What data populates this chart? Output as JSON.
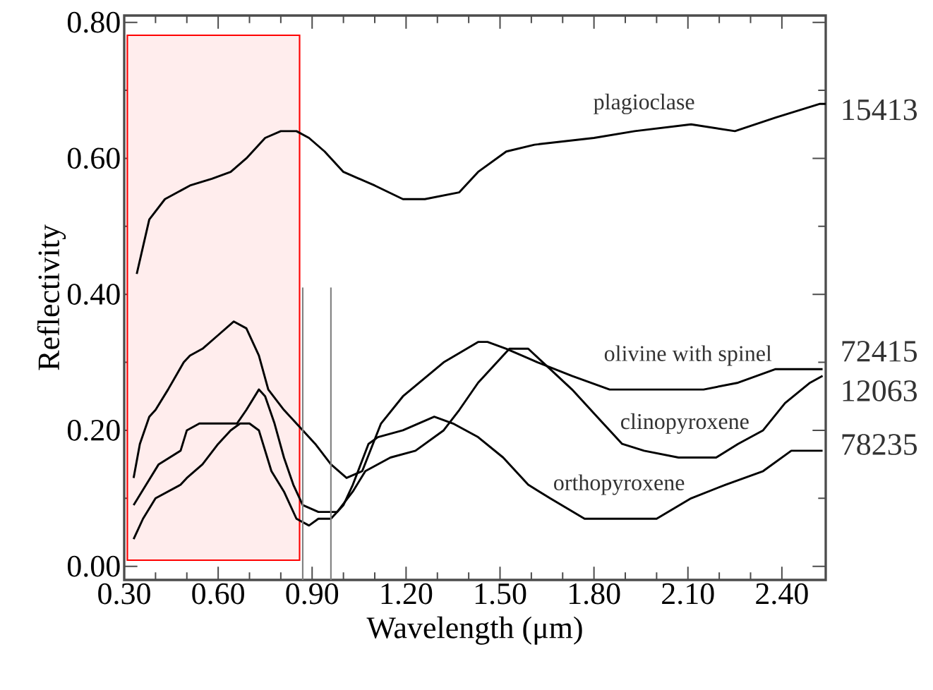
{
  "chart_data": {
    "type": "line",
    "xlabel": "Wavelength (μm)",
    "ylabel": "Reflectivity",
    "marker": "none",
    "line_style": "solid",
    "xlim": [
      0.3,
      2.54
    ],
    "ylim": [
      -0.02,
      0.81
    ],
    "xticks": [
      {
        "value": 0.3,
        "label": "0.30"
      },
      {
        "value": 0.6,
        "label": "0.60"
      },
      {
        "value": 0.9,
        "label": "0.90"
      },
      {
        "value": 1.2,
        "label": "1.20"
      },
      {
        "value": 1.5,
        "label": "1.50"
      },
      {
        "value": 1.8,
        "label": "1.80"
      },
      {
        "value": 2.1,
        "label": "2.10"
      },
      {
        "value": 2.4,
        "label": "2.40"
      }
    ],
    "yticks": [
      {
        "value": 0,
        "label": "0.00"
      },
      {
        "value": 0.2,
        "label": "0.20"
      },
      {
        "value": 0.4,
        "label": "0.40"
      },
      {
        "value": 0.6,
        "label": "0.60"
      },
      {
        "value": 0.8,
        "label": "0.80"
      }
    ],
    "series": [
      {
        "name": "plagioclase",
        "color": "#000000",
        "x": [
          0.34,
          0.36,
          0.38,
          0.43,
          0.51,
          0.58,
          0.64,
          0.69,
          0.75,
          0.8,
          0.85,
          0.89,
          0.94,
          1.0,
          1.1,
          1.19,
          1.26,
          1.37,
          1.43,
          1.52,
          1.61,
          1.8,
          1.93,
          2.11,
          2.25,
          2.38,
          2.52,
          2.54
        ],
        "values": [
          0.43,
          0.47,
          0.51,
          0.54,
          0.56,
          0.57,
          0.58,
          0.6,
          0.63,
          0.64,
          0.64,
          0.63,
          0.61,
          0.58,
          0.56,
          0.54,
          0.54,
          0.55,
          0.58,
          0.61,
          0.62,
          0.63,
          0.64,
          0.65,
          0.64,
          0.66,
          0.68,
          0.68
        ]
      },
      {
        "name": "olivine with spinel",
        "color": "#000000",
        "x": [
          0.33,
          0.35,
          0.38,
          0.4,
          0.44,
          0.49,
          0.51,
          0.55,
          0.6,
          0.65,
          0.69,
          0.73,
          0.76,
          0.81,
          0.85,
          0.91,
          0.96,
          1.01,
          1.06,
          1.12,
          1.19,
          1.32,
          1.43,
          1.46,
          1.52,
          1.62,
          1.73,
          1.85,
          1.96,
          2.15,
          2.26,
          2.38,
          2.53
        ],
        "values": [
          0.13,
          0.18,
          0.22,
          0.23,
          0.26,
          0.3,
          0.31,
          0.32,
          0.34,
          0.36,
          0.35,
          0.31,
          0.26,
          0.23,
          0.21,
          0.18,
          0.15,
          0.13,
          0.14,
          0.21,
          0.25,
          0.3,
          0.33,
          0.33,
          0.32,
          0.3,
          0.28,
          0.26,
          0.26,
          0.26,
          0.27,
          0.29,
          0.29
        ]
      },
      {
        "name": "clinopyroxene",
        "color": "#000000",
        "x": [
          0.33,
          0.37,
          0.41,
          0.48,
          0.5,
          0.54,
          0.62,
          0.66,
          0.69,
          0.73,
          0.75,
          0.78,
          0.81,
          0.84,
          0.87,
          0.92,
          0.98,
          1.03,
          1.07,
          1.15,
          1.23,
          1.32,
          1.37,
          1.43,
          1.53,
          1.59,
          1.66,
          1.73,
          1.81,
          1.89,
          1.96,
          2.07,
          2.19,
          2.26,
          2.34,
          2.41,
          2.49,
          2.53
        ],
        "values": [
          0.09,
          0.12,
          0.15,
          0.17,
          0.2,
          0.21,
          0.21,
          0.21,
          0.23,
          0.26,
          0.25,
          0.21,
          0.16,
          0.12,
          0.09,
          0.08,
          0.08,
          0.11,
          0.14,
          0.16,
          0.17,
          0.2,
          0.23,
          0.27,
          0.32,
          0.32,
          0.29,
          0.26,
          0.22,
          0.18,
          0.17,
          0.16,
          0.16,
          0.18,
          0.2,
          0.24,
          0.27,
          0.28
        ]
      },
      {
        "name": "orthopyroxene",
        "color": "#000000",
        "x": [
          0.33,
          0.36,
          0.4,
          0.48,
          0.5,
          0.55,
          0.6,
          0.64,
          0.67,
          0.7,
          0.73,
          0.77,
          0.81,
          0.85,
          0.89,
          0.92,
          0.96,
          1.0,
          1.03,
          1.08,
          1.11,
          1.19,
          1.29,
          1.35,
          1.43,
          1.51,
          1.59,
          1.66,
          1.77,
          1.89,
          2.0,
          2.11,
          2.22,
          2.34,
          2.43,
          2.53
        ],
        "values": [
          0.04,
          0.07,
          0.1,
          0.12,
          0.13,
          0.15,
          0.18,
          0.2,
          0.21,
          0.21,
          0.2,
          0.14,
          0.11,
          0.07,
          0.06,
          0.07,
          0.07,
          0.09,
          0.12,
          0.18,
          0.19,
          0.2,
          0.22,
          0.21,
          0.19,
          0.16,
          0.12,
          0.1,
          0.07,
          0.07,
          0.07,
          0.1,
          0.12,
          0.14,
          0.17,
          0.17
        ]
      },
      {
        "color": "#808080",
        "x": [
          0.87,
          0.87
        ],
        "values": [
          -0.02,
          0.41
        ]
      },
      {
        "color": "#808080",
        "x": [
          0.96,
          0.96
        ],
        "values": [
          -0.02,
          0.41
        ]
      }
    ],
    "bands": [
      {
        "axis": "x",
        "from": 0.31,
        "to": 0.86,
        "color": "#ff0000"
      }
    ],
    "annotations": [
      "15413",
      "72415",
      "12063",
      "78235"
    ]
  }
}
